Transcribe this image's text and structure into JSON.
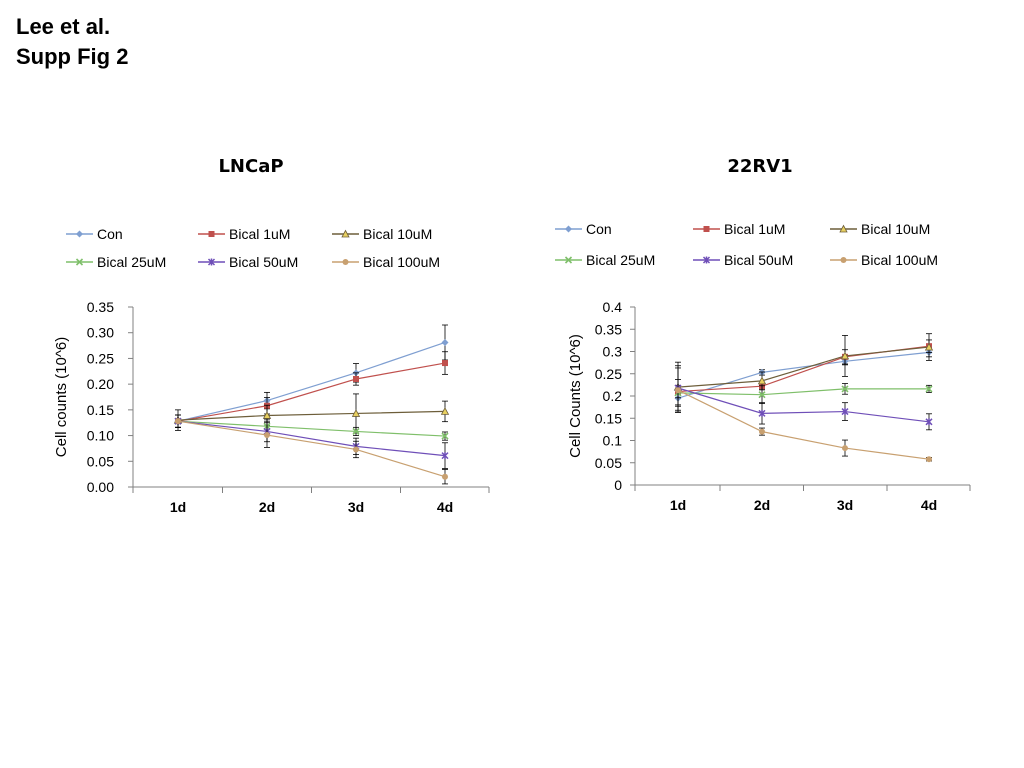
{
  "header": {
    "line1": "Lee et al.",
    "line2": "Supp Fig 2"
  },
  "colors": {
    "Con": "#7f9fd1",
    "Bical 1uM": "#c0504d",
    "Bical 10uM": "#6d5e3a",
    "Bical 25uM": "#7fbf6a",
    "Bical 50uM": "#6f4fb8",
    "Bical 100uM": "#c8a070",
    "axis": "#808080",
    "errorbar": "#000000"
  },
  "chart_data": [
    {
      "type": "line",
      "title": "LNCaP",
      "xlabel": "",
      "ylabel": "Cell counts (10^6)",
      "categories": [
        "1d",
        "2d",
        "3d",
        "4d"
      ],
      "ylim": [
        0,
        0.35
      ],
      "yticks": [
        0,
        0.05,
        0.1,
        0.15,
        0.2,
        0.25,
        0.3,
        0.35
      ],
      "ytick_labels": [
        "0.00",
        "0.05",
        "0.10",
        "0.15",
        "0.20",
        "0.25",
        "0.30",
        "0.35"
      ],
      "grid": false,
      "legend_position": "top",
      "series": [
        {
          "name": "Con",
          "values": [
            0.128,
            0.168,
            0.222,
            0.281
          ],
          "errors": [
            0.012,
            0.016,
            0.018,
            0.034
          ]
        },
        {
          "name": "Bical 1uM",
          "values": [
            0.128,
            0.158,
            0.21,
            0.241
          ],
          "errors": [
            0.012,
            0.016,
            0.012,
            0.022
          ]
        },
        {
          "name": "Bical 10uM",
          "values": [
            0.13,
            0.139,
            0.143,
            0.147
          ],
          "errors": [
            0.02,
            0.02,
            0.038,
            0.02
          ]
        },
        {
          "name": "Bical 25uM",
          "values": [
            0.128,
            0.118,
            0.108,
            0.099
          ],
          "errors": [
            0.012,
            0.014,
            0.008,
            0.008
          ]
        },
        {
          "name": "Bical 50uM",
          "values": [
            0.128,
            0.108,
            0.079,
            0.061
          ],
          "errors": [
            0.012,
            0.02,
            0.016,
            0.025
          ]
        },
        {
          "name": "Bical 100uM",
          "values": [
            0.128,
            0.101,
            0.073,
            0.02
          ],
          "errors": [
            0.012,
            0.024,
            0.016,
            0.014
          ]
        }
      ]
    },
    {
      "type": "line",
      "title": "22RV1",
      "xlabel": "",
      "ylabel": "Cell Counts (10^6)",
      "categories": [
        "1d",
        "2d",
        "3d",
        "4d"
      ],
      "ylim": [
        0,
        0.4
      ],
      "yticks": [
        0,
        0.05,
        0.1,
        0.15,
        0.2,
        0.25,
        0.3,
        0.35,
        0.4
      ],
      "ytick_labels": [
        "0",
        "0.05",
        "0.1",
        "0.15",
        "0.2",
        "0.25",
        "0.3",
        "0.35",
        "0.4"
      ],
      "grid": false,
      "legend_position": "top",
      "series": [
        {
          "name": "Con",
          "values": [
            0.195,
            0.253,
            0.278,
            0.298
          ],
          "errors": [
            0.015,
            0.006,
            0.008,
            0.01
          ]
        },
        {
          "name": "Bical 1uM",
          "values": [
            0.21,
            0.222,
            0.288,
            0.312
          ],
          "errors": [
            0.014,
            0.008,
            0.016,
            0.014
          ]
        },
        {
          "name": "Bical 10uM",
          "values": [
            0.22,
            0.234,
            0.29,
            0.31
          ],
          "errors": [
            0.056,
            0.02,
            0.046,
            0.03
          ]
        },
        {
          "name": "Bical 25uM",
          "values": [
            0.207,
            0.203,
            0.216,
            0.216
          ],
          "errors": [
            0.03,
            0.02,
            0.012,
            0.008
          ]
        },
        {
          "name": "Bical 50uM",
          "values": [
            0.218,
            0.161,
            0.165,
            0.142
          ],
          "errors": [
            0.05,
            0.024,
            0.02,
            0.018
          ]
        },
        {
          "name": "Bical 100uM",
          "values": [
            0.213,
            0.12,
            0.083,
            0.058
          ],
          "errors": [
            0.05,
            0.008,
            0.018,
            0.004
          ]
        }
      ]
    }
  ]
}
